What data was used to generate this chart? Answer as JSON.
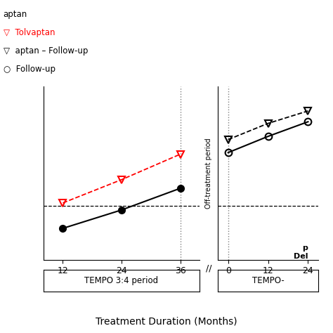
{
  "legend_prefix": "aptan",
  "legend_items": [
    {
      "label": "Tolvaptan",
      "color": "red",
      "linestyle": "dashed",
      "marker": "v"
    },
    {
      "label": "aptan – Follow-up",
      "color": "black",
      "linestyle": "dashed",
      "marker": "v"
    },
    {
      "label": "Follow-up",
      "color": "black",
      "linestyle": "solid",
      "marker": "o"
    }
  ],
  "tempo34_red_dashed": {
    "x": [
      12,
      24,
      36
    ],
    "y": [
      0.05,
      0.48,
      0.95
    ],
    "color": "red",
    "linestyle": "--",
    "marker": "v",
    "markersize": 7,
    "linewidth": 1.3
  },
  "tempo34_black_solid": {
    "x": [
      12,
      24,
      36
    ],
    "y": [
      -0.42,
      -0.08,
      0.32
    ],
    "color": "black",
    "linestyle": "-",
    "marker": "o",
    "markersize": 7,
    "linewidth": 1.5
  },
  "followup_black_dashed": {
    "x": [
      0,
      12,
      24
    ],
    "y": [
      1.22,
      1.52,
      1.75
    ],
    "color": "black",
    "linestyle": "--",
    "marker": "v",
    "markersize": 7,
    "linewidth": 1.3
  },
  "followup_black_solid": {
    "x": [
      0,
      12,
      24
    ],
    "y": [
      0.98,
      1.28,
      1.55
    ],
    "color": "black",
    "linestyle": "-",
    "marker": "o",
    "markersize": 7,
    "linewidth": 1.5
  },
  "hline_y": 0.0,
  "xlabel": "Treatment Duration (Months)",
  "tempo34_label": "TEMPO 3:4 period",
  "tempo1_label": "TEMPO-",
  "offtreatment_label": "Off-treatment period",
  "delay_label_line1": "p",
  "delay_label_line2": "Del",
  "ylim": [
    -1.0,
    2.2
  ],
  "background_color": "#ffffff"
}
